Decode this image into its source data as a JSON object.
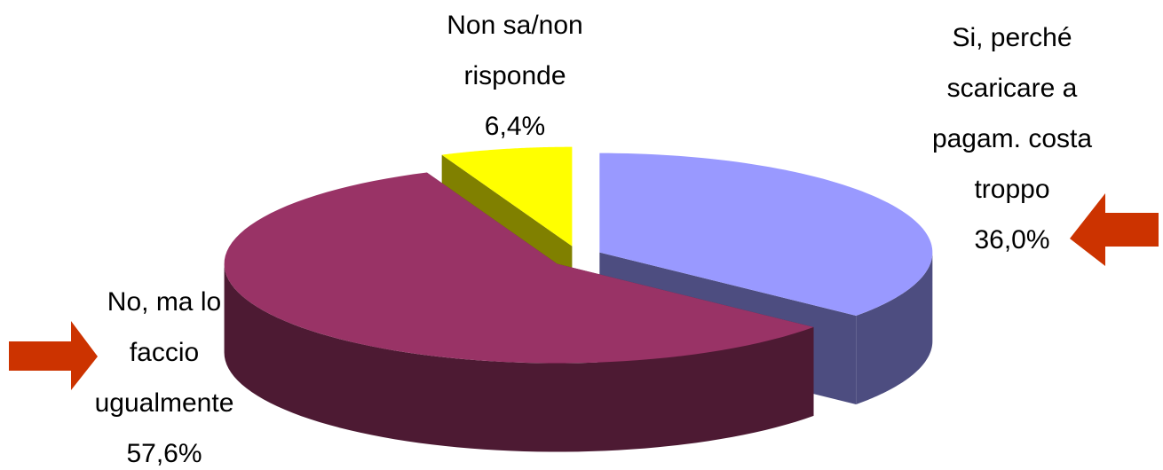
{
  "chart_data": {
    "type": "pie",
    "categories": [
      "Si, perché scaricare a pagam. costa troppo",
      "No, ma lo faccio ugualmente",
      "Non sa/non risponde"
    ],
    "values": [
      36.0,
      57.6,
      6.4
    ],
    "value_labels": [
      "36,0%",
      "57,6%",
      "6,4%"
    ],
    "colors": [
      "#9999ff",
      "#993366",
      "#ffff00"
    ]
  }
}
